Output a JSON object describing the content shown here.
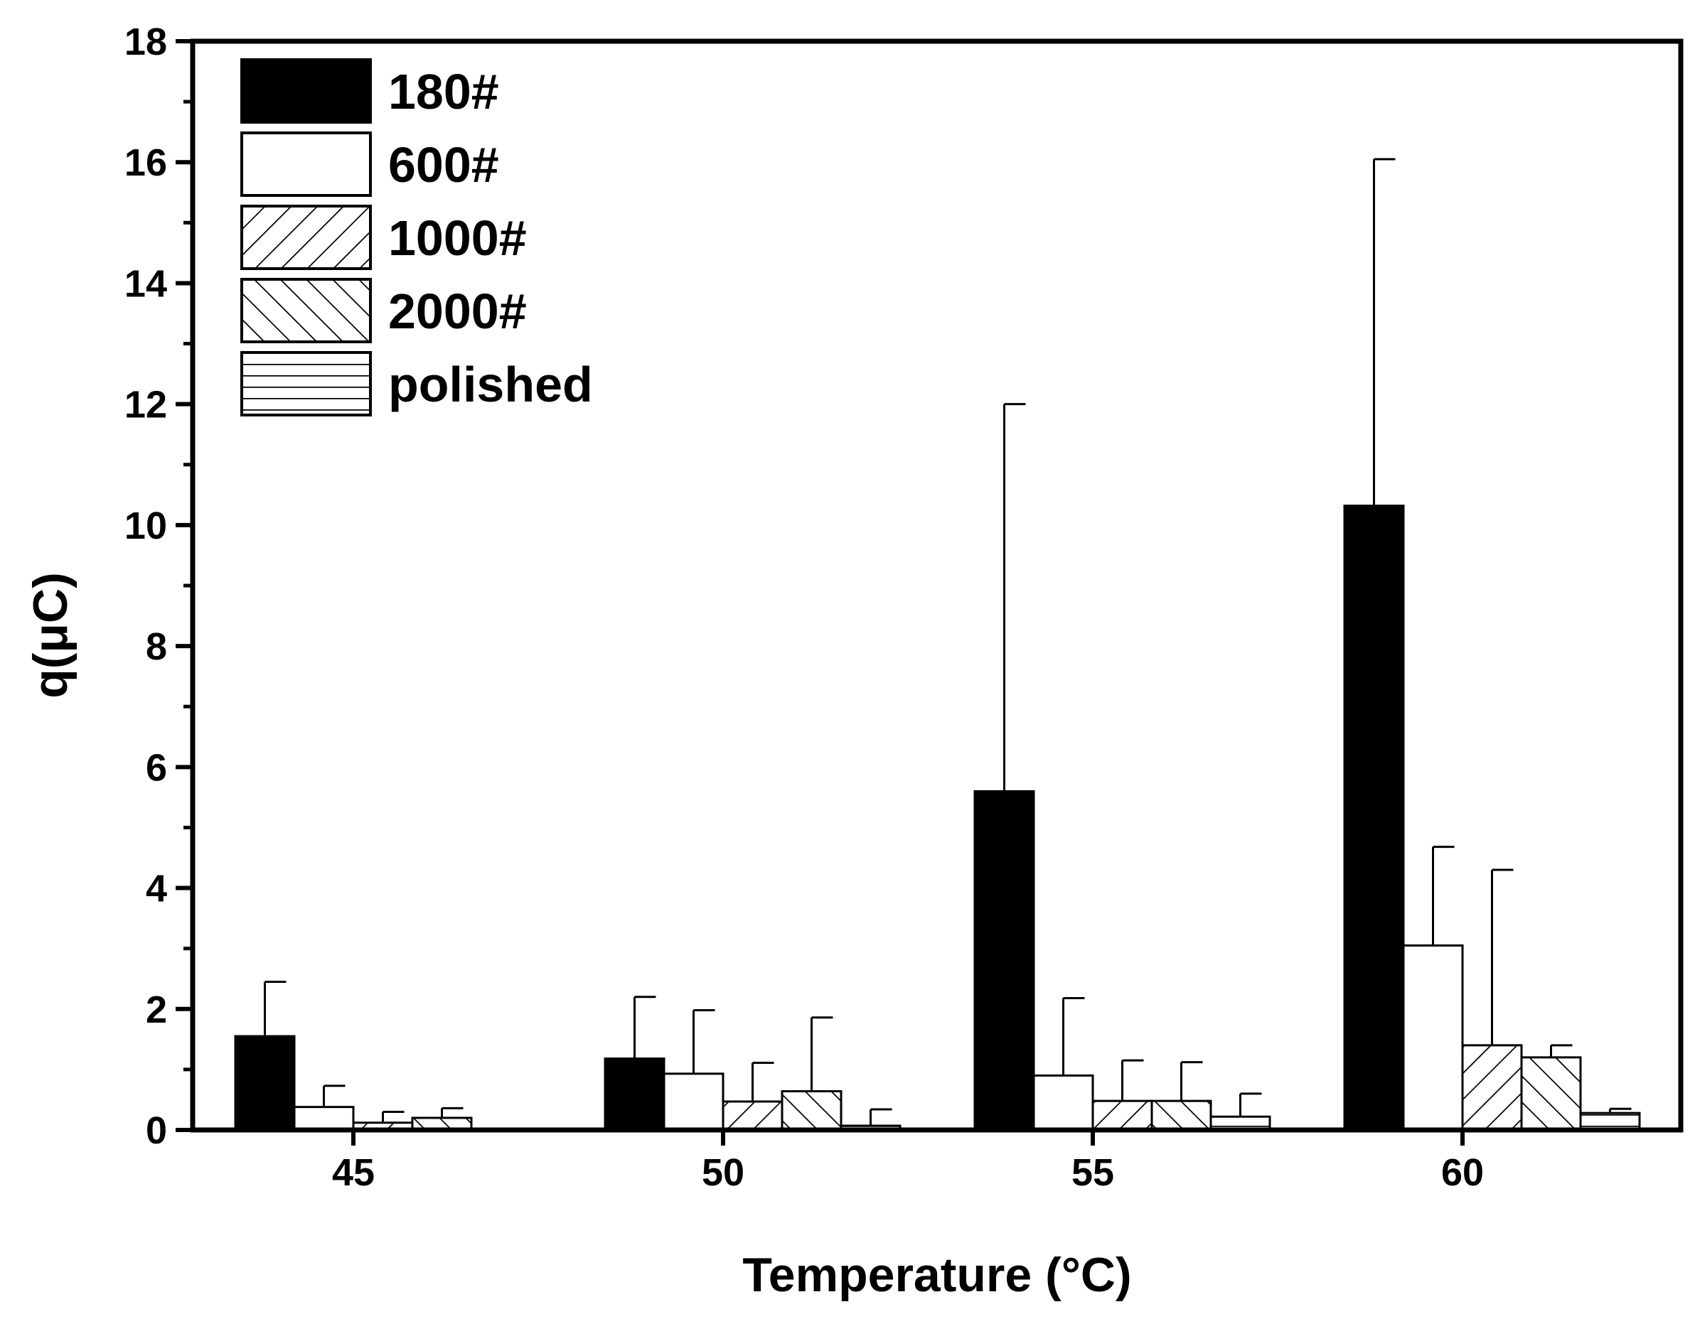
{
  "chart_data": {
    "type": "bar",
    "title": "",
    "xlabel": "Temperature (°C)",
    "ylabel": "q(μC)",
    "ylim": [
      0,
      18
    ],
    "yticks": [
      "0",
      "2",
      "4",
      "6",
      "8",
      "10",
      "12",
      "14",
      "16",
      "18"
    ],
    "categories": [
      "45",
      "50",
      "55",
      "60"
    ],
    "legend_position": "top-left",
    "grid": false,
    "series": [
      {
        "name": "180#",
        "pattern": "solid-black",
        "values": [
          1.55,
          1.18,
          5.6,
          10.32
        ],
        "errors": [
          0.9,
          1.02,
          6.4,
          5.73
        ]
      },
      {
        "name": "600#",
        "pattern": "white",
        "values": [
          0.38,
          0.93,
          0.9,
          3.05
        ],
        "errors": [
          0.35,
          1.05,
          1.28,
          1.63
        ]
      },
      {
        "name": "1000#",
        "pattern": "hatch-forward",
        "values": [
          0.12,
          0.47,
          0.48,
          1.4
        ],
        "errors": [
          0.18,
          0.64,
          0.67,
          2.9
        ]
      },
      {
        "name": "2000#",
        "pattern": "hatch-backward",
        "values": [
          0.2,
          0.64,
          0.48,
          1.2
        ],
        "errors": [
          0.16,
          1.22,
          0.64,
          0.2
        ]
      },
      {
        "name": "polished",
        "pattern": "hatch-horizontal",
        "values": [
          0.02,
          0.07,
          0.22,
          0.28
        ],
        "errors": [
          0.0,
          0.27,
          0.38,
          0.07
        ]
      }
    ],
    "colors": {
      "axis": "#000000",
      "background": "#ffffff",
      "bar_fill_dark": "#000000",
      "bar_fill_light": "#ffffff"
    }
  }
}
